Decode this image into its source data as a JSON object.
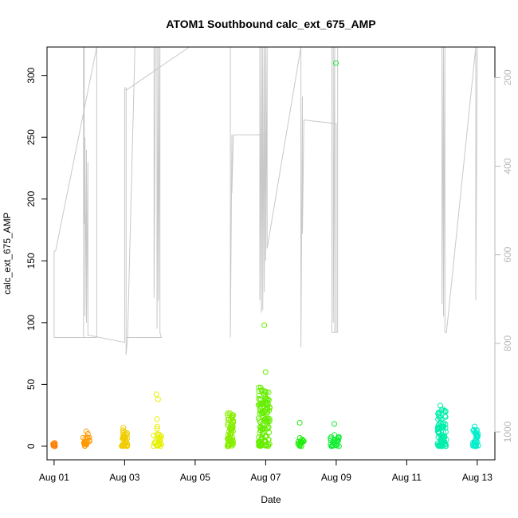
{
  "chart_data": {
    "type": "scatter",
    "title": "ATOM1 Southbound calc_ext_675_AMP",
    "xlabel": "Date",
    "ylabel": "calc_ext_675_AMP",
    "xlim": [
      "2023-07-31T19:10",
      "2023-08-13T12:00"
    ],
    "ylim": [
      -11,
      323
    ],
    "x_ticks": [
      "2023-08-01",
      "2023-08-03",
      "2023-08-05",
      "2023-08-07",
      "2023-08-09",
      "2023-08-11",
      "2023-08-13"
    ],
    "x_tick_labels": [
      "Aug 01",
      "Aug 03",
      "Aug 05",
      "Aug 07",
      "Aug 09",
      "Aug 11",
      "Aug 13"
    ],
    "y_ticks": [
      0,
      50,
      100,
      150,
      200,
      250,
      300
    ],
    "right_axis": {
      "ticks": [
        200,
        400,
        600,
        800,
        1000
      ],
      "range_top": 131,
      "range_bottom": 1063,
      "reversed": true,
      "color": "#b8b8b8"
    },
    "grid": false,
    "legend": "none",
    "point_marker": "open-circle",
    "depth_trace_color": "#c8c8c8",
    "clusters": [
      {
        "center": "2023-08-01T00:00",
        "width_hours": 1.5,
        "y_max": 3,
        "outliers": [],
        "color": "#ff7f00"
      },
      {
        "center": "2023-08-01T22:00",
        "width_hours": 5,
        "y_max": 8,
        "outliers": [
          10,
          12
        ],
        "color": "#ff9900"
      },
      {
        "center": "2023-08-03T00:00",
        "width_hours": 4,
        "y_max": 13,
        "outliers": [
          15
        ],
        "color": "#f0cc00"
      },
      {
        "center": "2023-08-03T22:00",
        "width_hours": 6,
        "y_max": 10,
        "outliers": [
          14,
          16,
          22,
          38,
          42
        ],
        "color": "#e6f000"
      },
      {
        "center": "2023-08-06T00:00",
        "width_hours": 4,
        "y_max": 27,
        "outliers": [],
        "color": "#88ee00"
      },
      {
        "center": "2023-08-06T23:00",
        "width_hours": 8,
        "y_max": 48,
        "outliers": [
          60,
          98
        ],
        "color": "#66ee00"
      },
      {
        "center": "2023-08-08T00:00",
        "width_hours": 4,
        "y_max": 7,
        "outliers": [
          19
        ],
        "color": "#22ee10"
      },
      {
        "center": "2023-08-08T23:00",
        "width_hours": 6,
        "y_max": 10,
        "outliers": [
          18,
          310
        ],
        "color": "#11ee33"
      },
      {
        "center": "2023-08-12T00:00",
        "width_hours": 6,
        "y_max": 30,
        "outliers": [
          33
        ],
        "color": "#00eeaa"
      },
      {
        "center": "2023-08-12T23:00",
        "width_hours": 4,
        "y_max": 14,
        "outliers": [
          16
        ],
        "color": "#00eecc"
      }
    ],
    "depth_trace": [
      [
        "2023-08-01T00:00",
        88
      ],
      [
        "2023-08-01T00:00",
        158
      ],
      [
        "2023-08-01T01:00",
        158
      ],
      [
        "2023-08-02T05:00",
        323
      ],
      [
        "2023-08-02T05:00",
        88
      ],
      [
        "2023-08-01T00:00",
        88
      ],
      [
        "2023-08-01T20:00",
        88
      ],
      [
        "2023-08-01T20:00",
        323
      ],
      [
        "2023-08-01T20:30",
        323
      ],
      [
        "2023-08-01T20:30",
        180
      ],
      [
        "2023-08-01T21:00",
        250
      ],
      [
        "2023-08-01T21:00",
        105
      ],
      [
        "2023-08-01T22:00",
        240
      ],
      [
        "2023-08-01T22:00",
        100
      ],
      [
        "2023-08-01T23:00",
        230
      ],
      [
        "2023-08-01T23:00",
        90
      ],
      [
        "2023-08-03T00:00",
        84
      ],
      [
        "2023-08-03T00:00",
        290
      ],
      [
        "2023-08-03T01:00",
        290
      ],
      [
        "2023-08-03T01:00",
        74
      ],
      [
        "2023-08-03T02:00",
        88
      ],
      [
        "2023-08-03T07:00",
        323
      ],
      [
        "2023-08-03T20:00",
        323
      ],
      [
        "2023-08-03T20:00",
        120
      ],
      [
        "2023-08-03T21:00",
        323
      ],
      [
        "2023-08-03T22:00",
        323
      ],
      [
        "2023-08-03T22:00",
        95
      ],
      [
        "2023-08-03T23:00",
        323
      ],
      [
        "2023-08-03T23:00",
        118
      ],
      [
        "2023-08-04T00:00",
        323
      ],
      [
        "2023-08-04T00:00",
        92
      ],
      [
        "2023-08-04T01:00",
        88
      ],
      [
        "2023-08-03T01:00",
        88
      ],
      [
        "2023-08-03T01:00",
        288
      ],
      [
        "2023-08-04T20:00",
        323
      ],
      [
        "2023-08-05T22:00",
        323
      ],
      [
        "2023-08-06T00:00",
        323
      ],
      [
        "2023-08-06T00:00",
        88
      ],
      [
        "2023-08-06T01:00",
        252
      ],
      [
        "2023-08-06T01:00",
        205
      ],
      [
        "2023-08-06T02:00",
        252
      ],
      [
        "2023-08-07T00:00",
        252
      ],
      [
        "2023-08-07T00:00",
        323
      ],
      [
        "2023-08-06T20:00",
        323
      ],
      [
        "2023-08-06T20:00",
        118
      ],
      [
        "2023-08-06T21:00",
        323
      ],
      [
        "2023-08-06T21:00",
        108
      ],
      [
        "2023-08-06T22:00",
        323
      ],
      [
        "2023-08-06T22:00",
        110
      ],
      [
        "2023-08-06T23:00",
        323
      ],
      [
        "2023-08-06T23:00",
        125
      ],
      [
        "2023-08-07T00:00",
        323
      ],
      [
        "2023-08-07T00:00",
        150
      ],
      [
        "2023-08-07T01:00",
        323
      ],
      [
        "2023-08-07T01:00",
        160
      ],
      [
        "2023-08-08T00:00",
        323
      ],
      [
        "2023-08-08T00:00",
        80
      ],
      [
        "2023-08-08T01:00",
        283
      ],
      [
        "2023-08-08T01:00",
        172
      ],
      [
        "2023-08-08T02:00",
        264
      ],
      [
        "2023-08-09T00:00",
        261
      ],
      [
        "2023-08-09T00:00",
        92
      ],
      [
        "2023-08-08T21:00",
        92
      ],
      [
        "2023-08-08T21:00",
        323
      ],
      [
        "2023-08-08T22:00",
        323
      ],
      [
        "2023-08-08T22:00",
        100
      ],
      [
        "2023-08-08T23:00",
        323
      ],
      [
        "2023-08-08T23:00",
        92
      ],
      [
        "2023-08-09T01:00",
        92
      ],
      [
        "2023-08-09T01:00",
        323
      ],
      [
        "2023-08-12T00:00",
        323
      ],
      [
        "2023-08-12T00:00",
        115
      ],
      [
        "2023-08-12T01:00",
        323
      ],
      [
        "2023-08-12T01:00",
        105
      ],
      [
        "2023-08-12T02:00",
        323
      ],
      [
        "2023-08-12T02:00",
        92
      ],
      [
        "2023-08-12T03:00",
        92
      ],
      [
        "2023-08-12T23:00",
        323
      ],
      [
        "2023-08-12T23:00",
        118
      ],
      [
        "2023-08-13T00:00",
        323
      ]
    ]
  }
}
